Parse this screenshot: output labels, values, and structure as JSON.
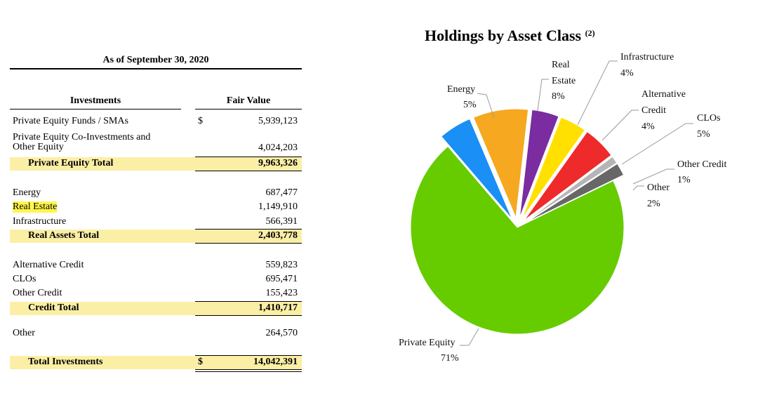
{
  "table": {
    "as_of": "As of September 30, 2020",
    "headers": {
      "investments": "Investments",
      "fair_value": "Fair Value"
    },
    "currency_symbol": "$",
    "private_equity": {
      "rows": [
        {
          "label": "Private Equity Funds / SMAs",
          "value": "5,939,123"
        },
        {
          "label_line1": "Private Equity Co-Investments and",
          "label_line2": "Other Equity",
          "value": "4,024,203"
        }
      ],
      "total_label": "Private Equity Total",
      "total_value": "9,963,326"
    },
    "real_assets": {
      "rows": [
        {
          "label": "Energy",
          "value": "687,477"
        },
        {
          "label": "Real Estate",
          "value": "1,149,910"
        },
        {
          "label": "Infrastructure",
          "value": "566,391"
        }
      ],
      "total_label": "Real Assets Total",
      "total_value": "2,403,778"
    },
    "credit": {
      "rows": [
        {
          "label": "Alternative Credit",
          "value": "559,823"
        },
        {
          "label": "CLOs",
          "value": "695,471"
        },
        {
          "label": "Other Credit",
          "value": "155,423"
        }
      ],
      "total_label": "Credit Total",
      "total_value": "1,410,717"
    },
    "other": {
      "label": "Other",
      "value": "264,570"
    },
    "grand_total": {
      "label": "Total Investments",
      "value": "14,042,391"
    }
  },
  "chart_data": {
    "type": "pie",
    "title": "Holdings by Asset Class",
    "title_note": "(2)",
    "slices": [
      {
        "name": "Private Equity",
        "percent_label": "71%",
        "value": 9963326,
        "color": "#66cc00"
      },
      {
        "name": "Energy",
        "percent_label": "5%",
        "value": 687477,
        "color": "#1a8ff5"
      },
      {
        "name": "Real Estate",
        "percent_label": "8%",
        "value": 1149910,
        "color": "#f6a820"
      },
      {
        "name": "Infrastructure",
        "percent_label": "4%",
        "value": 566391,
        "color": "#7a2ca0"
      },
      {
        "name": "Alternative Credit",
        "percent_label": "4%",
        "value": 559823,
        "color": "#ffe000"
      },
      {
        "name": "CLOs",
        "percent_label": "5%",
        "value": 695471,
        "color": "#ee2a2a"
      },
      {
        "name": "Other Credit",
        "percent_label": "1%",
        "value": 155423,
        "color": "#b5b5b5"
      },
      {
        "name": "Other",
        "percent_label": "2%",
        "value": 264570,
        "color": "#676767"
      }
    ],
    "labels": {
      "private_equity": [
        "Private Equity",
        "71%"
      ],
      "energy": [
        "Energy",
        "5%"
      ],
      "real_estate": [
        "Real",
        "Estate",
        "8%"
      ],
      "infrastructure": [
        "Infrastructure",
        "4%"
      ],
      "alternative_credit": [
        "Alternative",
        "Credit",
        "4%"
      ],
      "clos": [
        "CLOs",
        "5%"
      ],
      "other_credit": [
        "Other Credit",
        "1%"
      ],
      "other": [
        "Other",
        "2%"
      ]
    }
  }
}
